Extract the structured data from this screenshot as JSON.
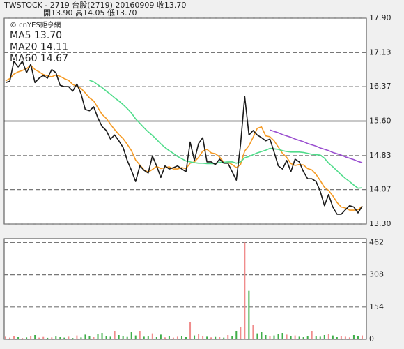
{
  "chart_data": [
    {
      "type": "line",
      "title": "TWSTOCK - 2719 台股(2719) 20160909 收13.70",
      "subtitle": "開13.90 高14.05 低13.70",
      "source": "© cnYES鉅亨網",
      "color": "#1a1a1a",
      "values": [
        16.46,
        16.49,
        16.94,
        16.81,
        16.94,
        16.68,
        16.87,
        16.46,
        16.56,
        16.62,
        16.56,
        16.75,
        16.68,
        16.4,
        16.37,
        16.37,
        16.27,
        16.43,
        16.21,
        15.86,
        15.83,
        15.92,
        15.67,
        15.48,
        15.39,
        15.2,
        15.29,
        15.16,
        15.01,
        14.72,
        14.5,
        14.25,
        14.6,
        14.5,
        14.44,
        14.82,
        14.6,
        14.34,
        14.6,
        14.53,
        14.56,
        14.6,
        14.53,
        14.47,
        15.13,
        14.72,
        15.1,
        15.23,
        14.69,
        14.69,
        14.63,
        14.75,
        14.66,
        14.66,
        14.47,
        14.28,
        15.07,
        16.15,
        15.29,
        15.39,
        15.29,
        15.23,
        15.16,
        15.2,
        14.91,
        14.6,
        14.53,
        14.72,
        14.47,
        14.75,
        14.69,
        14.47,
        14.31,
        14.31,
        14.25,
        14.03,
        13.71,
        13.96,
        13.68,
        13.52,
        13.52,
        13.62,
        13.71,
        13.68,
        13.55,
        13.7
      ],
      "series": [
        {
          "name": "MA5 13.70",
          "color": "#f59a23",
          "values": [
            16.5,
            16.55,
            16.65,
            16.7,
            16.73,
            16.77,
            16.85,
            16.75,
            16.7,
            16.64,
            16.61,
            16.59,
            16.63,
            16.6,
            16.55,
            16.51,
            16.42,
            16.37,
            16.33,
            16.23,
            16.12,
            16.05,
            15.9,
            15.75,
            15.66,
            15.53,
            15.41,
            15.3,
            15.21,
            15.08,
            14.94,
            14.73,
            14.62,
            14.51,
            14.46,
            14.52,
            14.59,
            14.54,
            14.56,
            14.58,
            14.53,
            14.53,
            14.56,
            14.54,
            14.66,
            14.69,
            14.79,
            14.93,
            14.97,
            14.89,
            14.87,
            14.8,
            14.68,
            14.68,
            14.63,
            14.56,
            14.63,
            14.93,
            15.05,
            15.24,
            15.44,
            15.47,
            15.27,
            15.25,
            15.16,
            15.02,
            14.88,
            14.79,
            14.65,
            14.61,
            14.63,
            14.62,
            14.54,
            14.51,
            14.41,
            14.27,
            14.12,
            14.05,
            13.93,
            13.78,
            13.68,
            13.66,
            13.61,
            13.61,
            13.62,
            13.7
          ]
        },
        {
          "name": "MA20 14.11",
          "color": "#4fdc8a",
          "values": [
            null,
            null,
            null,
            null,
            null,
            null,
            null,
            null,
            null,
            null,
            null,
            null,
            null,
            null,
            null,
            null,
            null,
            null,
            null,
            null,
            16.51,
            16.48,
            16.41,
            16.35,
            16.27,
            16.2,
            16.12,
            16.05,
            15.97,
            15.88,
            15.78,
            15.65,
            15.55,
            15.45,
            15.36,
            15.28,
            15.19,
            15.09,
            15.01,
            14.94,
            14.88,
            14.81,
            14.76,
            14.71,
            14.69,
            14.67,
            14.66,
            14.66,
            14.65,
            14.65,
            14.65,
            14.68,
            14.68,
            14.69,
            14.69,
            14.66,
            14.69,
            14.78,
            14.81,
            14.85,
            14.89,
            14.92,
            14.95,
            14.99,
            14.98,
            14.97,
            14.94,
            14.92,
            14.91,
            14.91,
            14.91,
            14.9,
            14.88,
            14.86,
            14.85,
            14.84,
            14.77,
            14.66,
            14.58,
            14.49,
            14.4,
            14.32,
            14.25,
            14.17,
            14.1,
            14.11
          ]
        },
        {
          "name": "MA60 14.67",
          "color": "#9a4fd0",
          "values": [
            null,
            null,
            null,
            null,
            null,
            null,
            null,
            null,
            null,
            null,
            null,
            null,
            null,
            null,
            null,
            null,
            null,
            null,
            null,
            null,
            null,
            null,
            null,
            null,
            null,
            null,
            null,
            null,
            null,
            null,
            null,
            null,
            null,
            null,
            null,
            null,
            null,
            null,
            null,
            null,
            null,
            null,
            null,
            null,
            null,
            null,
            null,
            null,
            null,
            null,
            null,
            null,
            null,
            null,
            null,
            null,
            null,
            null,
            null,
            null,
            null,
            null,
            null,
            15.4,
            15.37,
            15.34,
            15.3,
            15.27,
            15.24,
            15.2,
            15.17,
            15.14,
            15.1,
            15.07,
            15.04,
            15.0,
            14.97,
            14.94,
            14.9,
            14.87,
            14.84,
            14.8,
            14.77,
            14.74,
            14.7,
            14.67
          ]
        }
      ],
      "ylim": [
        13.3,
        17.9
      ],
      "yticks": [
        {
          "value": 13.3,
          "label": "13.30"
        },
        14.07,
        14.83,
        {
          "value": 15.6,
          "label": "15.60"
        },
        16.37,
        17.13,
        {
          "value": 17.9,
          "label": "17.90"
        }
      ],
      "grid": true
    },
    {
      "type": "bar",
      "values": [
        12,
        8,
        15,
        10,
        6,
        9,
        14,
        20,
        8,
        11,
        7,
        9,
        13,
        10,
        8,
        12,
        6,
        18,
        9,
        22,
        15,
        10,
        25,
        30,
        14,
        12,
        40,
        20,
        16,
        11,
        35,
        18,
        40,
        12,
        15,
        28,
        10,
        22,
        9,
        14,
        8,
        12,
        16,
        10,
        80,
        18,
        25,
        14,
        12,
        9,
        11,
        10,
        8,
        20,
        15,
        40,
        60,
        462,
        231,
        70,
        28,
        35,
        20,
        15,
        18,
        25,
        30,
        22,
        14,
        18,
        12,
        10,
        16,
        40,
        14,
        12,
        20,
        25,
        18,
        10,
        14,
        12,
        9,
        20,
        15,
        18
      ],
      "up_color": "#f08c8c",
      "down_color": "#3fae49",
      "ylim": [
        0,
        480
      ],
      "yticks": [
        0,
        154,
        308,
        462
      ],
      "grid": true
    }
  ]
}
